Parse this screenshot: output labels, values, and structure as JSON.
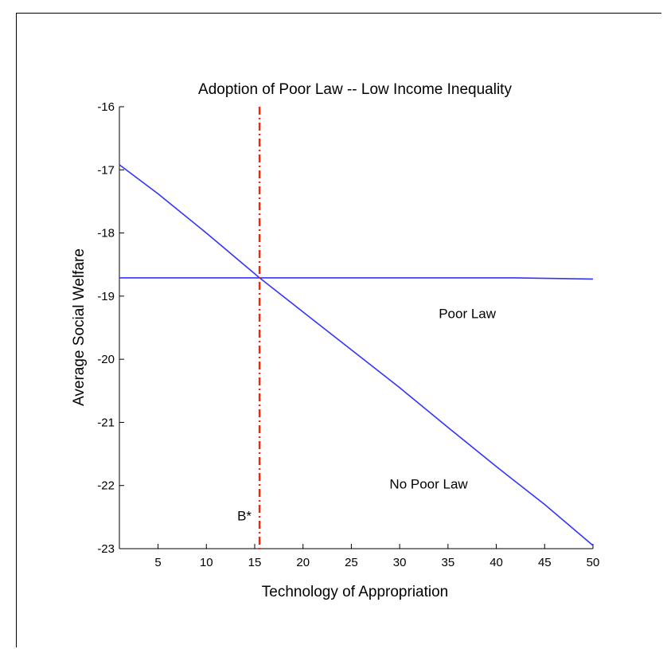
{
  "chart_data": {
    "type": "line",
    "title": "Adoption of Poor Law -- Low Income Inequality",
    "xlabel": "Technology of Appropriation",
    "ylabel": "Average Social Welfare",
    "xlim": [
      1,
      50
    ],
    "ylim": [
      -23,
      -16
    ],
    "xticks": [
      5,
      10,
      15,
      20,
      25,
      30,
      35,
      40,
      45,
      50
    ],
    "yticks": [
      -16,
      -17,
      -18,
      -19,
      -20,
      -21,
      -22,
      -23
    ],
    "grid": false,
    "series": [
      {
        "name": "Poor Law",
        "color": "#3333ff",
        "x": [
          1,
          15.5,
          30,
          42,
          50
        ],
        "y": [
          -18.71,
          -18.71,
          -18.71,
          -18.71,
          -18.73
        ]
      },
      {
        "name": "No Poor Law",
        "color": "#3333ff",
        "x": [
          1,
          5,
          10,
          15.5,
          20,
          25,
          30,
          35,
          40,
          45,
          50
        ],
        "y": [
          -16.92,
          -17.38,
          -18.0,
          -18.71,
          -19.25,
          -19.85,
          -20.45,
          -21.08,
          -21.7,
          -22.3,
          -22.95
        ]
      }
    ],
    "vline": {
      "x": 15.5,
      "label": "B*",
      "color": "#ff2200",
      "style": "dash-dot"
    }
  }
}
